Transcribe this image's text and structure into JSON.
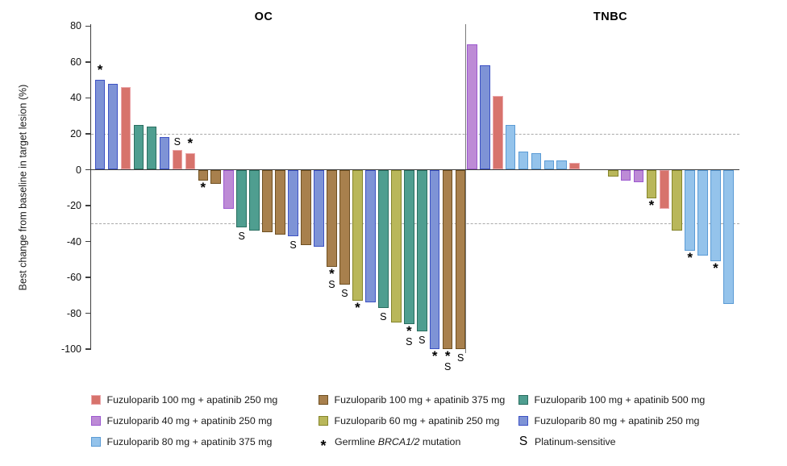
{
  "chart_data": {
    "type": "bar",
    "subtype": "waterfall",
    "title": "",
    "ylabel": "Best change from baseline in target lesion (%)",
    "ylim": [
      -100,
      80
    ],
    "yticks": [
      80,
      60,
      40,
      20,
      0,
      -20,
      -40,
      -60,
      -80,
      -100
    ],
    "reference_lines": [
      20,
      -30
    ],
    "grid": false,
    "marker_meanings": {
      "*": "Germline BRCA1/2 mutation",
      "S": "Platinum-sensitive"
    },
    "series_colors": {
      "f100a250": {
        "fill": "#d7736c",
        "border": "#eba6aa"
      },
      "f40a250": {
        "fill": "#bd8bd6",
        "border": "#9c59cf"
      },
      "f80a375": {
        "fill": "#94c3eb",
        "border": "#5b9bd5"
      },
      "f100a375": {
        "fill": "#a8804d",
        "border": "#6f5022"
      },
      "f60a250": {
        "fill": "#b9b75a",
        "border": "#85852b"
      },
      "f100a500": {
        "fill": "#4f9e90",
        "border": "#2a6e60"
      },
      "f80a250": {
        "fill": "#7e93d6",
        "border": "#3d52c4"
      }
    },
    "groups": [
      {
        "name": "OC",
        "bars": [
          {
            "v": 50,
            "s": "f80a250",
            "a": "*"
          },
          {
            "v": 48,
            "s": "f80a250"
          },
          {
            "v": 46,
            "s": "f100a250"
          },
          {
            "v": 25,
            "s": "f100a500"
          },
          {
            "v": 24,
            "s": "f100a500"
          },
          {
            "v": 18,
            "s": "f80a250"
          },
          {
            "v": 11,
            "s": "f100a250",
            "a": "S"
          },
          {
            "v": 9,
            "s": "f100a250",
            "a": "*"
          },
          {
            "v": -6,
            "s": "f100a375",
            "a": "*"
          },
          {
            "v": -8,
            "s": "f100a375"
          },
          {
            "v": -22,
            "s": "f40a250"
          },
          {
            "v": -32,
            "s": "f100a500",
            "a": "S"
          },
          {
            "v": -34,
            "s": "f100a500"
          },
          {
            "v": -35,
            "s": "f100a375"
          },
          {
            "v": -36,
            "s": "f100a375"
          },
          {
            "v": -37,
            "s": "f80a250",
            "a": "S"
          },
          {
            "v": -42,
            "s": "f100a375"
          },
          {
            "v": -43,
            "s": "f80a250"
          },
          {
            "v": -54,
            "s": "f100a375",
            "a": "*S"
          },
          {
            "v": -64,
            "s": "f100a375",
            "a": "S"
          },
          {
            "v": -73,
            "s": "f60a250",
            "a": "*"
          },
          {
            "v": -74,
            "s": "f80a250"
          },
          {
            "v": -77,
            "s": "f100a500",
            "a": "S"
          },
          {
            "v": -85,
            "s": "f60a250"
          },
          {
            "v": -86,
            "s": "f100a500",
            "a": "*S"
          },
          {
            "v": -90,
            "s": "f100a500",
            "a": "S"
          },
          {
            "v": -100,
            "s": "f80a250",
            "a": "*"
          },
          {
            "v": -100,
            "s": "f100a375",
            "a": "*S"
          },
          {
            "v": -100,
            "s": "f100a375",
            "a": "S"
          }
        ]
      },
      {
        "name": "TNBC",
        "bars": [
          {
            "v": 70,
            "s": "f40a250"
          },
          {
            "v": 58,
            "s": "f80a250"
          },
          {
            "v": 41,
            "s": "f100a250"
          },
          {
            "v": 25,
            "s": "f80a375"
          },
          {
            "v": 10,
            "s": "f80a375"
          },
          {
            "v": 9,
            "s": "f80a375"
          },
          {
            "v": 5,
            "s": "f80a375"
          },
          {
            "v": 5,
            "s": "f80a375"
          },
          {
            "v": 4,
            "s": "f100a250"
          },
          {
            "v": null
          },
          {
            "v": null
          },
          {
            "v": -4,
            "s": "f60a250"
          },
          {
            "v": -6,
            "s": "f40a250"
          },
          {
            "v": -7,
            "s": "f40a250"
          },
          {
            "v": -16,
            "s": "f60a250",
            "a": "*"
          },
          {
            "v": -22,
            "s": "f100a250"
          },
          {
            "v": -34,
            "s": "f60a250"
          },
          {
            "v": -45,
            "s": "f80a375",
            "a": "*"
          },
          {
            "v": -48,
            "s": "f80a375"
          },
          {
            "v": -51,
            "s": "f80a375",
            "a": "*"
          },
          {
            "v": -75,
            "s": "f80a375"
          }
        ]
      }
    ],
    "legend_columns": [
      [
        {
          "series": "f100a250",
          "label": "Fuzuloparib 100 mg + apatinib 250 mg"
        },
        {
          "series": "f40a250",
          "label": "Fuzuloparib 40 mg + apatinib 250 mg"
        },
        {
          "series": "f80a375",
          "label": "Fuzuloparib 80 mg + apatinib 375 mg"
        }
      ],
      [
        {
          "series": "f100a375",
          "label": "Fuzuloparib 100 mg + apatinib 375 mg"
        },
        {
          "series": "f60a250",
          "label": "Fuzuloparib 60 mg + apatinib 250 mg"
        },
        {
          "symbol": "*",
          "parts": [
            "Germline ",
            "BRCA1/2",
            " mutation"
          ]
        }
      ],
      [
        {
          "series": "f100a500",
          "label": "Fuzuloparib 100 mg + apatinib 500 mg"
        },
        {
          "series": "f80a250",
          "label": "Fuzuloparib 80 mg + apatinib 250 mg"
        },
        {
          "symbol": "S",
          "label": "Platinum-sensitive"
        }
      ]
    ]
  }
}
